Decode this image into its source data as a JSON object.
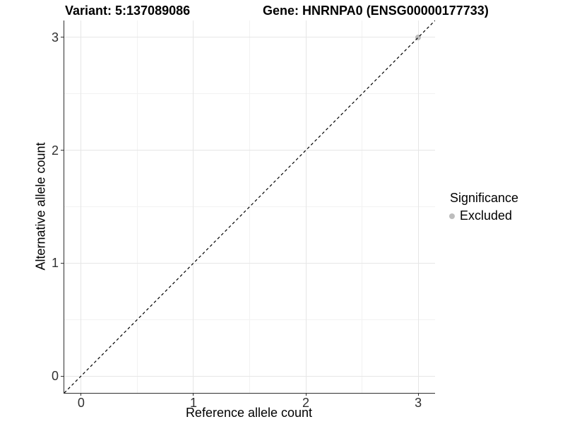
{
  "colors": {
    "background": "#ffffff",
    "grid_major": "#e6e6e6",
    "grid_minor": "#f2f2f2",
    "axis_line": "#2f2f2f",
    "tick_label": "#303030",
    "point_excluded": "#bdbdbd",
    "reference_line": "#000000"
  },
  "chart_data": {
    "type": "scatter",
    "title_left": "Variant: 5:137089086",
    "title_right": "Gene: HNRNPA0 (ENSG00000177733)",
    "xlabel": "Reference allele count",
    "ylabel": "Alternative allele count",
    "xlim": [
      -0.15,
      3.15
    ],
    "ylim": [
      -0.15,
      3.15
    ],
    "x_major_ticks": [
      0,
      1,
      2,
      3
    ],
    "x_minor_ticks": [
      0.5,
      1.5,
      2.5
    ],
    "y_major_ticks": [
      0,
      1,
      2,
      3
    ],
    "y_minor_ticks": [
      0.5,
      1.5,
      2.5
    ],
    "grid": true,
    "points": [
      {
        "x": 3,
        "y": 3,
        "significance": "Excluded",
        "color": "#bdbdbd"
      }
    ],
    "reference_line": {
      "slope": 1,
      "intercept": 0,
      "style": "dashed",
      "color": "#000000"
    },
    "legend_position": "right"
  },
  "legend": {
    "title": "Significance",
    "items": [
      {
        "label": "Excluded",
        "color": "#bdbdbd"
      }
    ]
  }
}
